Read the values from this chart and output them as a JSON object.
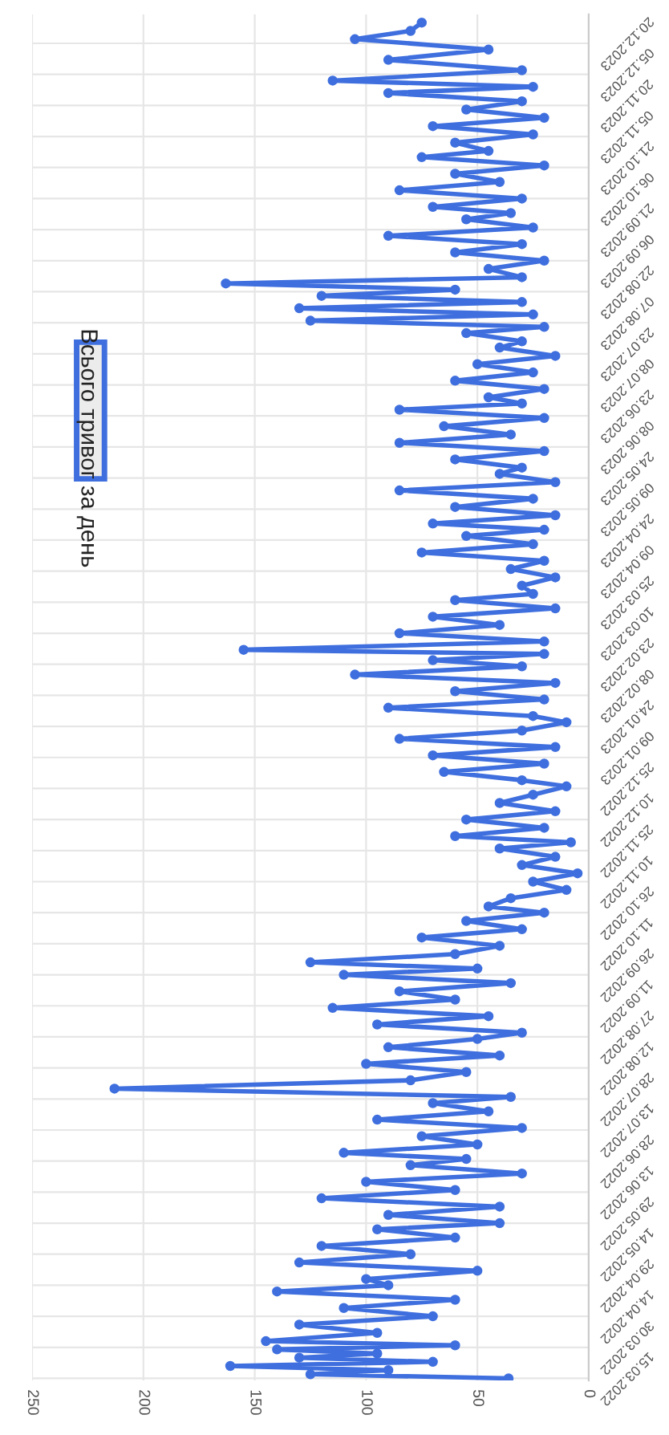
{
  "chart_data": {
    "type": "line",
    "orientation": "horizontal",
    "legend": "top left",
    "grid": true,
    "marker": "circle",
    "line_style": "solid",
    "xlim": [
      250,
      0
    ],
    "xticks": [
      250,
      200,
      150,
      100,
      50,
      0
    ],
    "ylim": [
      "2022-03-14",
      "2024-01-03"
    ],
    "yticks": [
      {
        "value": "2022-03-15",
        "label": "15.03.2022"
      },
      {
        "value": "2022-03-30",
        "label": "30.03.2022"
      },
      {
        "value": "2022-04-14",
        "label": "14.04.2022"
      },
      {
        "value": "2022-04-29",
        "label": "29.04.2022"
      },
      {
        "value": "2022-05-14",
        "label": "14.05.2022"
      },
      {
        "value": "2022-05-29",
        "label": "29.05.2022"
      },
      {
        "value": "2022-06-13",
        "label": "13.06.2022"
      },
      {
        "value": "2022-06-28",
        "label": "28.06.2022"
      },
      {
        "value": "2022-07-13",
        "label": "13.07.2022"
      },
      {
        "value": "2022-07-28",
        "label": "28.07.2022"
      },
      {
        "value": "2022-08-12",
        "label": "12.08.2022"
      },
      {
        "value": "2022-08-27",
        "label": "27.08.2022"
      },
      {
        "value": "2022-09-11",
        "label": "11.09.2022"
      },
      {
        "value": "2022-09-26",
        "label": "26.09.2022"
      },
      {
        "value": "2022-10-11",
        "label": "11.10.2022"
      },
      {
        "value": "2022-10-26",
        "label": "26.10.2022"
      },
      {
        "value": "2022-11-10",
        "label": "10.11.2022"
      },
      {
        "value": "2022-11-25",
        "label": "25.11.2022"
      },
      {
        "value": "2022-12-10",
        "label": "10.12.2022"
      },
      {
        "value": "2022-12-25",
        "label": "25.12.2022"
      },
      {
        "value": "2023-01-09",
        "label": "09.01.2023"
      },
      {
        "value": "2023-01-24",
        "label": "24.01.2023"
      },
      {
        "value": "2023-02-08",
        "label": "08.02.2023"
      },
      {
        "value": "2023-02-23",
        "label": "23.02.2023"
      },
      {
        "value": "2023-03-10",
        "label": "10.03.2023"
      },
      {
        "value": "2023-03-25",
        "label": "25.03.2023"
      },
      {
        "value": "2023-04-09",
        "label": "09.04.2023"
      },
      {
        "value": "2023-04-24",
        "label": "24.04.2023"
      },
      {
        "value": "2023-05-09",
        "label": "09.05.2023"
      },
      {
        "value": "2023-05-24",
        "label": "24.05.2023"
      },
      {
        "value": "2023-06-08",
        "label": "08.06.2023"
      },
      {
        "value": "2023-06-23",
        "label": "23.06.2023"
      },
      {
        "value": "2023-07-08",
        "label": "08.07.2023"
      },
      {
        "value": "2023-07-23",
        "label": "23.07.2023"
      },
      {
        "value": "2023-08-07",
        "label": "07.08.2023"
      },
      {
        "value": "2023-08-22",
        "label": "22.08.2023"
      },
      {
        "value": "2023-09-06",
        "label": "06.09.2023"
      },
      {
        "value": "2023-09-21",
        "label": "21.09.2023"
      },
      {
        "value": "2023-10-06",
        "label": "06.10.2023"
      },
      {
        "value": "2023-10-21",
        "label": "21.10.2023"
      },
      {
        "value": "2023-11-05",
        "label": "05.11.2023"
      },
      {
        "value": "2023-11-20",
        "label": "20.11.2023"
      },
      {
        "value": "2023-12-05",
        "label": "05.12.2023"
      },
      {
        "value": "2023-12-20",
        "label": "20.12.2023"
      }
    ],
    "x": [
      "2022-03-15",
      "2022-03-17",
      "2022-03-19",
      "2022-03-21",
      "2022-03-23",
      "2022-03-25",
      "2022-03-27",
      "2022-03-29",
      "2022-03-31",
      "2022-04-02",
      "2022-04-06",
      "2022-04-10",
      "2022-04-14",
      "2022-04-18",
      "2022-04-22",
      "2022-04-26",
      "2022-04-29",
      "2022-05-02",
      "2022-05-06",
      "2022-05-10",
      "2022-05-14",
      "2022-05-18",
      "2022-05-22",
      "2022-05-26",
      "2022-05-29",
      "2022-06-02",
      "2022-06-06",
      "2022-06-10",
      "2022-06-14",
      "2022-06-18",
      "2022-06-22",
      "2022-06-26",
      "2022-06-29",
      "2022-07-02",
      "2022-07-06",
      "2022-07-10",
      "2022-07-14",
      "2022-07-18",
      "2022-07-22",
      "2022-07-26",
      "2022-07-29",
      "2022-08-02",
      "2022-08-06",
      "2022-08-10",
      "2022-08-14",
      "2022-08-18",
      "2022-08-22",
      "2022-08-26",
      "2022-08-29",
      "2022-09-02",
      "2022-09-06",
      "2022-09-10",
      "2022-09-14",
      "2022-09-18",
      "2022-09-22",
      "2022-09-26",
      "2022-09-29",
      "2022-10-02",
      "2022-10-06",
      "2022-10-10",
      "2022-10-14",
      "2022-10-18",
      "2022-10-22",
      "2022-10-26",
      "2022-10-29",
      "2022-11-02",
      "2022-11-06",
      "2022-11-10",
      "2022-11-14",
      "2022-11-18",
      "2022-11-22",
      "2022-11-26",
      "2022-11-29",
      "2022-12-02",
      "2022-12-06",
      "2022-12-10",
      "2022-12-14",
      "2022-12-18",
      "2022-12-22",
      "2022-12-26",
      "2022-12-29",
      "2023-01-02",
      "2023-01-06",
      "2023-01-10",
      "2023-01-14",
      "2023-01-18",
      "2023-01-22",
      "2023-01-26",
      "2023-01-29",
      "2023-02-02",
      "2023-02-06",
      "2023-02-10",
      "2023-02-14",
      "2023-02-18",
      "2023-02-22",
      "2023-02-25",
      "2023-02-28",
      "2023-03-02",
      "2023-03-06",
      "2023-03-10",
      "2023-03-14",
      "2023-03-18",
      "2023-03-22",
      "2023-03-26",
      "2023-03-29",
      "2023-04-02",
      "2023-04-06",
      "2023-04-10",
      "2023-04-14",
      "2023-04-18",
      "2023-04-22",
      "2023-04-26",
      "2023-04-29",
      "2023-05-02",
      "2023-05-06",
      "2023-05-10",
      "2023-05-14",
      "2023-05-18",
      "2023-05-22",
      "2023-05-26",
      "2023-05-29",
      "2023-06-02",
      "2023-06-06",
      "2023-06-10",
      "2023-06-14",
      "2023-06-18",
      "2023-06-22",
      "2023-06-26",
      "2023-06-29",
      "2023-07-02",
      "2023-07-06",
      "2023-07-10",
      "2023-07-14",
      "2023-07-18",
      "2023-07-22",
      "2023-07-26",
      "2023-07-29",
      "2023-08-02",
      "2023-08-05",
      "2023-08-08",
      "2023-08-11",
      "2023-08-14",
      "2023-08-17",
      "2023-08-20",
      "2023-08-23",
      "2023-08-26",
      "2023-08-29",
      "2023-09-02",
      "2023-09-06",
      "2023-09-10",
      "2023-09-14",
      "2023-09-18",
      "2023-09-22",
      "2023-09-26",
      "2023-09-29",
      "2023-10-02",
      "2023-10-06",
      "2023-10-10",
      "2023-10-14",
      "2023-10-18",
      "2023-10-22",
      "2023-10-26",
      "2023-10-29",
      "2023-11-02",
      "2023-11-06",
      "2023-11-10",
      "2023-11-14",
      "2023-11-18",
      "2023-11-22",
      "2023-11-26",
      "2023-11-29",
      "2023-12-02",
      "2023-12-07",
      "2023-12-12",
      "2023-12-17",
      "2023-12-22",
      "2023-12-26",
      "2023-12-30"
    ],
    "series": [
      {
        "name": "Всього тривог за день",
        "color": "#3f6fde",
        "values": [
          36,
          125,
          90,
          161,
          70,
          130,
          95,
          140,
          60,
          145,
          95,
          130,
          70,
          110,
          60,
          140,
          90,
          100,
          50,
          130,
          80,
          120,
          60,
          95,
          40,
          90,
          40,
          120,
          60,
          100,
          30,
          80,
          55,
          110,
          50,
          75,
          30,
          95,
          45,
          70,
          35,
          213,
          80,
          55,
          100,
          40,
          90,
          50,
          30,
          95,
          45,
          115,
          60,
          85,
          35,
          110,
          50,
          125,
          60,
          40,
          75,
          30,
          55,
          20,
          45,
          35,
          10,
          25,
          5,
          30,
          15,
          40,
          8,
          60,
          20,
          55,
          15,
          40,
          25,
          10,
          30,
          65,
          20,
          70,
          15,
          85,
          30,
          10,
          25,
          90,
          20,
          60,
          15,
          105,
          30,
          70,
          20,
          155,
          20,
          85,
          40,
          70,
          15,
          60,
          25,
          30,
          15,
          35,
          20,
          75,
          25,
          55,
          20,
          70,
          15,
          60,
          25,
          85,
          15,
          40,
          30,
          60,
          20,
          85,
          35,
          65,
          20,
          85,
          30,
          45,
          20,
          60,
          25,
          50,
          15,
          40,
          30,
          55,
          20,
          125,
          25,
          130,
          30,
          120,
          60,
          163,
          30,
          45,
          20,
          60,
          30,
          90,
          25,
          55,
          35,
          70,
          30,
          85,
          40,
          60,
          20,
          75,
          45,
          60,
          25,
          70,
          20,
          55,
          30,
          90,
          25,
          115,
          30,
          90,
          45,
          105,
          80,
          75
        ]
      }
    ]
  }
}
